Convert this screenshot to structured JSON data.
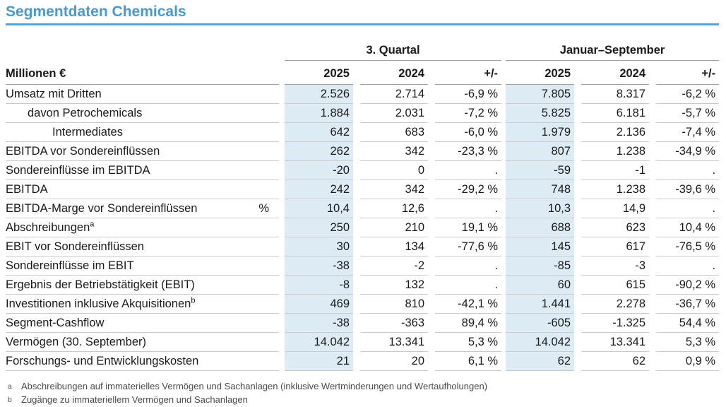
{
  "title": "Segmentdaten Chemicals",
  "colors": {
    "title_blue": "#4a99cf",
    "rule_blue": "#5aa1d4",
    "highlight_blue": "#dcebf4",
    "row_line_gray": "#cccccc",
    "header_line_gray": "#9e9e9e"
  },
  "table": {
    "unit_label": "Millionen €",
    "groups": [
      {
        "label": "3. Quartal"
      },
      {
        "label": "Januar–September"
      }
    ],
    "col_headers": [
      "2025",
      "2024",
      "+/-",
      "2025",
      "2024",
      "+/-"
    ],
    "highlighted_columns": [
      "2025"
    ],
    "rows": [
      {
        "label": "Umsatz mit Dritten",
        "indent": 0,
        "values": [
          "2.526",
          "2.714",
          "-6,9 %",
          "7.805",
          "8.317",
          "-6,2 %"
        ]
      },
      {
        "label": "davon Petrochemicals",
        "indent": 1,
        "values": [
          "1.884",
          "2.031",
          "-7,2 %",
          "5.825",
          "6.181",
          "-5,7 %"
        ]
      },
      {
        "label": "Intermediates",
        "indent": 2,
        "values": [
          "642",
          "683",
          "-6,0 %",
          "1.979",
          "2.136",
          "-7,4 %"
        ]
      },
      {
        "label": "EBITDA vor Sondereinflüssen",
        "indent": 0,
        "values": [
          "262",
          "342",
          "-23,3 %",
          "807",
          "1.238",
          "-34,9 %"
        ]
      },
      {
        "label": "Sondereinflüsse im EBITDA",
        "indent": 0,
        "values": [
          "-20",
          "0",
          ".",
          "-59",
          "-1",
          "."
        ]
      },
      {
        "label": "EBITDA",
        "indent": 0,
        "values": [
          "242",
          "342",
          "-29,2 %",
          "748",
          "1.238",
          "-39,6 %"
        ]
      },
      {
        "label": "EBITDA-Marge vor Sondereinflüssen",
        "indent": 0,
        "unit": "%",
        "values": [
          "10,4",
          "12,6",
          ".",
          "10,3",
          "14,9",
          "."
        ]
      },
      {
        "label": "Abschreibungen",
        "indent": 0,
        "sup": "a",
        "values": [
          "250",
          "210",
          "19,1 %",
          "688",
          "623",
          "10,4 %"
        ]
      },
      {
        "label": "EBIT vor Sondereinflüssen",
        "indent": 0,
        "values": [
          "30",
          "134",
          "-77,6 %",
          "145",
          "617",
          "-76,5 %"
        ]
      },
      {
        "label": "Sondereinflüsse im EBIT",
        "indent": 0,
        "values": [
          "-38",
          "-2",
          ".",
          "-85",
          "-3",
          "."
        ]
      },
      {
        "label": "Ergebnis der Betriebstätigkeit (EBIT)",
        "indent": 0,
        "values": [
          "-8",
          "132",
          ".",
          "60",
          "615",
          "-90,2 %"
        ]
      },
      {
        "label": "Investitionen inklusive Akquisitionen",
        "indent": 0,
        "sup": "b",
        "values": [
          "469",
          "810",
          "-42,1 %",
          "1.441",
          "2.278",
          "-36,7 %"
        ]
      },
      {
        "label": "Segment-Cashflow",
        "indent": 0,
        "values": [
          "-38",
          "-363",
          "89,4 %",
          "-605",
          "-1.325",
          "54,4 %"
        ]
      },
      {
        "label": "Vermögen (30. September)",
        "indent": 0,
        "values": [
          "14.042",
          "13.341",
          "5,3 %",
          "14.042",
          "13.341",
          "5,3 %"
        ]
      },
      {
        "label": "Forschungs- und Entwicklungskosten",
        "indent": 0,
        "values": [
          "21",
          "20",
          "6,1 %",
          "62",
          "62",
          "0,9 %"
        ]
      }
    ],
    "footnotes": [
      {
        "marker": "a",
        "text": "Abschreibungen auf immaterielles Vermögen und Sachanlagen (inklusive Wertminderungen und Wertaufholungen)"
      },
      {
        "marker": "b",
        "text": "Zugänge zu immateriellem Vermögen und Sachanlagen"
      }
    ]
  }
}
